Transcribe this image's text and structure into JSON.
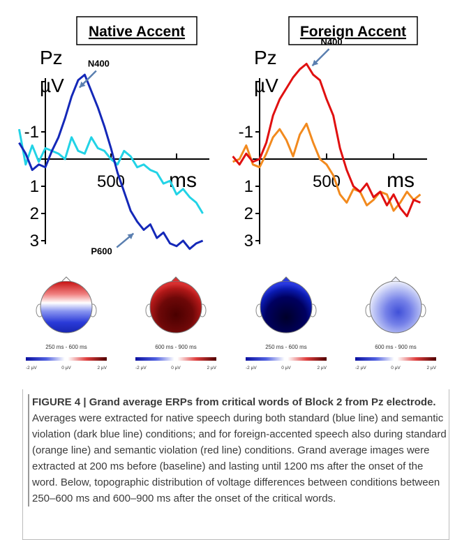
{
  "chart_data": [
    {
      "type": "line",
      "title": "Native Accent",
      "channel": "Pz",
      "y_unit": "µV",
      "x_unit": "ms",
      "xlim": [
        -200,
        1200
      ],
      "ylim": [
        -3.2,
        3.3
      ],
      "y_inverted": true,
      "x_ticks": [
        {
          "value": 500,
          "label": "500"
        }
      ],
      "y_ticks": [
        {
          "value": -1,
          "label": "-1"
        },
        {
          "value": 1,
          "label": "1"
        },
        {
          "value": 2,
          "label": "2"
        },
        {
          "value": 3,
          "label": "3"
        }
      ],
      "series": [
        {
          "color": "#22d3e6",
          "x": [
            -200,
            -150,
            -100,
            -50,
            0,
            50,
            100,
            150,
            200,
            250,
            300,
            350,
            400,
            450,
            500,
            550,
            600,
            650,
            700,
            750,
            800,
            850,
            900,
            950,
            1000,
            1050,
            1100,
            1150,
            1200
          ],
          "values": [
            -1.1,
            0.2,
            -0.5,
            0.1,
            -0.4,
            -0.3,
            -0.2,
            0.0,
            -0.8,
            -0.3,
            -0.2,
            -0.8,
            -0.4,
            -0.3,
            0.0,
            0.2,
            -0.3,
            -0.1,
            0.3,
            0.2,
            0.4,
            0.5,
            0.9,
            0.8,
            1.3,
            1.1,
            1.4,
            1.6,
            2.0
          ]
        },
        {
          "color": "#1428b8",
          "x": [
            -200,
            -150,
            -100,
            -50,
            0,
            50,
            100,
            150,
            200,
            250,
            300,
            350,
            400,
            450,
            500,
            550,
            600,
            650,
            700,
            750,
            800,
            850,
            900,
            950,
            1000,
            1050,
            1100,
            1150,
            1200
          ],
          "values": [
            -0.6,
            -0.2,
            0.4,
            0.2,
            0.3,
            -0.3,
            -0.8,
            -1.5,
            -2.3,
            -2.9,
            -3.1,
            -2.5,
            -1.9,
            -1.2,
            -0.4,
            0.5,
            1.2,
            1.9,
            2.3,
            2.6,
            2.4,
            2.9,
            2.7,
            3.1,
            3.2,
            3.0,
            3.3,
            3.1,
            3.0
          ]
        }
      ],
      "annotations": [
        {
          "text": "N400",
          "x": 430,
          "y": -3.5
        },
        {
          "text": "P600",
          "x": 640,
          "y": 3.4
        }
      ]
    },
    {
      "type": "line",
      "title": "Foreign Accent",
      "channel": "Pz",
      "y_unit": "µV",
      "x_unit": "ms",
      "xlim": [
        -200,
        1200
      ],
      "ylim": [
        -3.2,
        3.3
      ],
      "y_inverted": true,
      "x_ticks": [
        {
          "value": 500,
          "label": "500"
        }
      ],
      "y_ticks": [
        {
          "value": -1,
          "label": "-1"
        },
        {
          "value": 1,
          "label": "1"
        },
        {
          "value": 2,
          "label": "2"
        },
        {
          "value": 3,
          "label": "3"
        }
      ],
      "series": [
        {
          "color": "#f28a1e",
          "x": [
            -200,
            -150,
            -100,
            -50,
            0,
            50,
            100,
            150,
            200,
            250,
            300,
            350,
            400,
            450,
            500,
            550,
            600,
            650,
            700,
            750,
            800,
            850,
            900,
            950,
            1000,
            1050,
            1100,
            1150,
            1200
          ],
          "values": [
            0.1,
            0.0,
            -0.5,
            0.2,
            0.3,
            -0.2,
            -0.8,
            -1.1,
            -0.7,
            -0.1,
            -0.9,
            -1.3,
            -0.6,
            0.0,
            0.2,
            0.6,
            1.3,
            1.6,
            1.1,
            1.2,
            1.7,
            1.5,
            1.2,
            1.3,
            1.9,
            1.6,
            1.2,
            1.5,
            1.3
          ]
        },
        {
          "color": "#e01010",
          "x": [
            -200,
            -150,
            -100,
            -50,
            0,
            50,
            100,
            150,
            200,
            250,
            300,
            350,
            400,
            450,
            500,
            550,
            600,
            650,
            700,
            750,
            800,
            850,
            900,
            950,
            1000,
            1050,
            1100,
            1150,
            1200
          ],
          "values": [
            -0.1,
            0.2,
            -0.2,
            0.1,
            0.0,
            -0.6,
            -1.6,
            -2.2,
            -2.6,
            -3.0,
            -3.3,
            -3.5,
            -3.1,
            -2.9,
            -2.2,
            -1.6,
            -0.4,
            0.4,
            1.0,
            1.2,
            0.9,
            1.4,
            1.2,
            1.7,
            1.3,
            1.8,
            2.1,
            1.5,
            1.6
          ]
        }
      ],
      "annotations": [
        {
          "text": "N400",
          "x": 560,
          "y": -4.3
        }
      ]
    }
  ],
  "topomaps": [
    {
      "time_label": "250 ms - 600 ms",
      "scale_labels": [
        "-2 µV",
        "0 µV",
        "2 µV"
      ]
    },
    {
      "time_label": "600 ms - 900 ms",
      "scale_labels": [
        "-2 µV",
        "0 µV",
        "2 µV"
      ]
    },
    {
      "time_label": "250 ms - 600 ms",
      "scale_labels": [
        "-2 µV",
        "0 µV",
        "2 µV"
      ]
    },
    {
      "time_label": "600 ms - 900 ms",
      "scale_labels": [
        "-2 µV",
        "0 µV",
        "2 µV"
      ]
    }
  ],
  "caption": {
    "title": "FIGURE 4 | Grand average ERPs from critical words of Block 2 from Pz electrode.",
    "body": "Averages were extracted for native speech during both standard (blue line) and semantic violation (dark blue line) conditions; and for foreign-accented speech also during standard (orange line) and semantic violation (red line) conditions. Grand average images were extracted at 200 ms before (baseline) and lasting until 1200 ms after the onset of the word. Below, topographic distribution of voltage differences between conditions between 250–600 ms and 600–900 ms after the onset of the critical words."
  }
}
